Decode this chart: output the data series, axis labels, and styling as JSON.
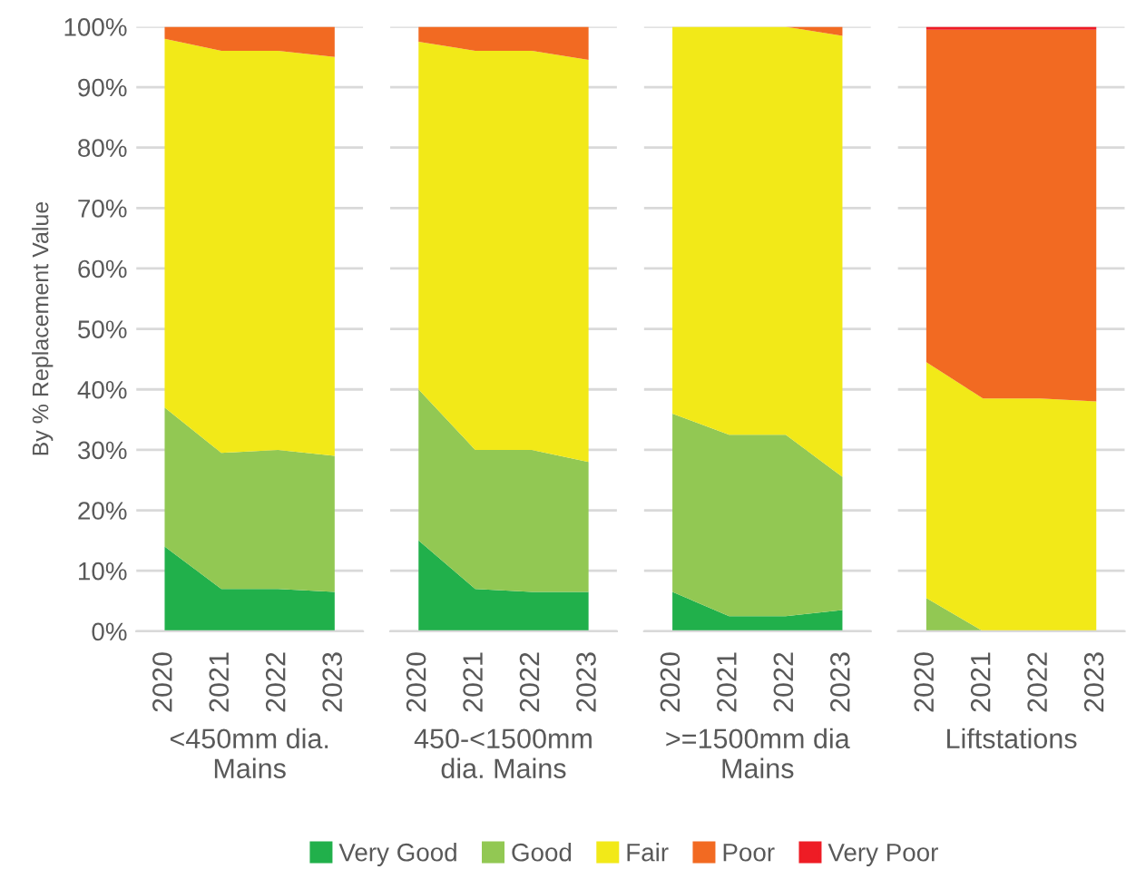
{
  "chart_data": [
    {
      "type": "area",
      "stacked": true,
      "xlabel": "<450mm dia. Mains",
      "ylabel": "By % Replacement Value",
      "categories": [
        "2020",
        "2021",
        "2022",
        "2023"
      ],
      "ylim": [
        0,
        100
      ],
      "yticks": [
        {
          "value": 0,
          "label": "0%"
        },
        {
          "value": 10,
          "label": "10%"
        },
        {
          "value": 20,
          "label": "20%"
        },
        {
          "value": 30,
          "label": "30%"
        },
        {
          "value": 40,
          "label": "40%"
        },
        {
          "value": 50,
          "label": "50%"
        },
        {
          "value": 60,
          "label": "60%"
        },
        {
          "value": 70,
          "label": "70%"
        },
        {
          "value": 80,
          "label": "80%"
        },
        {
          "value": 90,
          "label": "90%"
        },
        {
          "value": 100,
          "label": "100%"
        }
      ],
      "grid": "y",
      "legend": "bottom",
      "series": [
        {
          "name": "Very Good",
          "color": "#21b04b",
          "values": [
            14,
            7,
            7,
            6.5
          ]
        },
        {
          "name": "Good",
          "color": "#92c853",
          "values": [
            23,
            22.5,
            23,
            22.5
          ]
        },
        {
          "name": "Fair",
          "color": "#f2e918",
          "values": [
            61,
            66.5,
            66,
            66
          ]
        },
        {
          "name": "Poor",
          "color": "#f26a22",
          "values": [
            2,
            4,
            4,
            5
          ]
        }
      ]
    },
    {
      "type": "area",
      "stacked": true,
      "xlabel": "450-<1500mm dia. Mains",
      "categories": [
        "2020",
        "2021",
        "2022",
        "2023"
      ],
      "ylim": [
        0,
        100
      ],
      "yticks": [
        0,
        10,
        20,
        30,
        40,
        50,
        60,
        70,
        80,
        90,
        100
      ],
      "grid": "y",
      "tick_labels": "x",
      "series": [
        {
          "name": "Very Good",
          "color": "#21b04b",
          "values": [
            15,
            7,
            6.5,
            6.5
          ]
        },
        {
          "name": "Good",
          "color": "#92c853",
          "values": [
            25,
            23,
            23.5,
            21.5
          ]
        },
        {
          "name": "Fair",
          "color": "#f2e918",
          "values": [
            57.5,
            66,
            66,
            66.5
          ]
        },
        {
          "name": "Poor",
          "color": "#f26a22",
          "values": [
            2.5,
            4,
            4,
            5.5
          ]
        }
      ]
    },
    {
      "type": "area",
      "stacked": true,
      "xlabel": ">=1500mm dia Mains",
      "categories": [
        "2020",
        "2021",
        "2022",
        "2023"
      ],
      "ylim": [
        0,
        100
      ],
      "yticks": [
        0,
        10,
        20,
        30,
        40,
        50,
        60,
        70,
        80,
        90,
        100
      ],
      "grid": "y",
      "tick_labels": "x",
      "series": [
        {
          "name": "Very Good",
          "color": "#21b04b",
          "values": [
            6.5,
            2.5,
            2.5,
            3.5
          ]
        },
        {
          "name": "Good",
          "color": "#92c853",
          "values": [
            29.5,
            30,
            30,
            22
          ]
        },
        {
          "name": "Fair",
          "color": "#f2e918",
          "values": [
            64,
            67.5,
            67.5,
            73
          ]
        },
        {
          "name": "Poor",
          "color": "#f26a22",
          "values": [
            0,
            0,
            0,
            1.5
          ]
        }
      ]
    },
    {
      "type": "area",
      "stacked": true,
      "xlabel": "Liftstations",
      "categories": [
        "2020",
        "2021",
        "2022",
        "2023"
      ],
      "ylim": [
        0,
        100
      ],
      "yticks": [
        0,
        10,
        20,
        30,
        40,
        50,
        60,
        70,
        80,
        90,
        100
      ],
      "grid": "y",
      "tick_labels": "x",
      "series": [
        {
          "name": "Good",
          "color": "#92c853",
          "values": [
            5.5,
            0,
            0,
            0
          ]
        },
        {
          "name": "Fair",
          "color": "#f2e918",
          "values": [
            39,
            38.5,
            38.5,
            38
          ]
        },
        {
          "name": "Poor",
          "color": "#f26a22",
          "values": [
            55,
            61,
            61,
            61.5
          ]
        },
        {
          "name": "Very Poor",
          "color": "#ee1c25",
          "values": [
            0.5,
            0.5,
            0.5,
            0.5
          ]
        }
      ]
    }
  ]
}
